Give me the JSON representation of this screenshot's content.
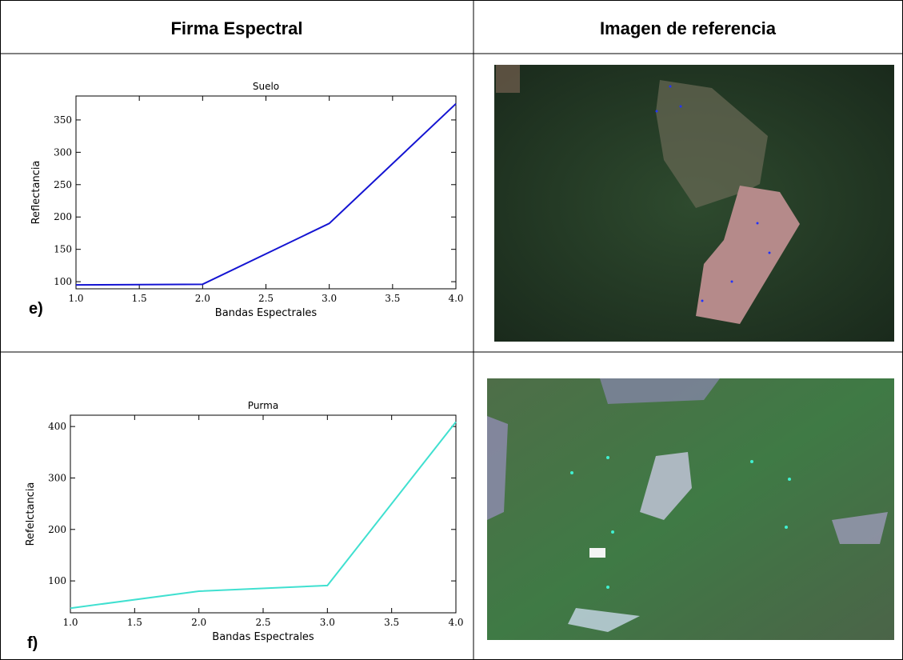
{
  "table": {
    "headers": [
      "Firma Espectral",
      "Imagen de referencia"
    ],
    "rows": [
      {
        "label": "e)",
        "chart": {
          "type": "line",
          "title": "Suelo",
          "x_label": "Bandas Espectrales",
          "y_label": "Reflectancia",
          "x": [
            1,
            2,
            3,
            4
          ],
          "values": [
            95,
            96,
            190,
            375
          ],
          "color": "#1414d2",
          "xlim": [
            1,
            4
          ],
          "ylim": [
            89,
            387
          ],
          "xticks": [
            {
              "value": 1,
              "label": "1.0"
            },
            {
              "value": 1.5,
              "label": "1.5"
            },
            {
              "value": 2,
              "label": "2.0"
            },
            {
              "value": 2.5,
              "label": "2.5"
            },
            {
              "value": 3,
              "label": "3.0"
            },
            {
              "value": 3.5,
              "label": "3.5"
            },
            {
              "value": 4,
              "label": "4.0"
            }
          ],
          "yticks": [
            100,
            150,
            200,
            250,
            300,
            350
          ]
        }
      },
      {
        "label": "f)",
        "chart": {
          "type": "line",
          "title": "Purma",
          "x_label": "Bandas Espectrales",
          "y_label": "Refelctancia",
          "x": [
            1,
            2,
            3,
            4
          ],
          "values": [
            47,
            80,
            91,
            409
          ],
          "color": "#40e0d0",
          "xlim": [
            1,
            4
          ],
          "ylim": [
            38,
            422
          ],
          "xticks": [
            {
              "value": 1,
              "label": "1.0"
            },
            {
              "value": 1.5,
              "label": "1.5"
            },
            {
              "value": 2,
              "label": "2.0"
            },
            {
              "value": 2.5,
              "label": "2.5"
            },
            {
              "value": 3,
              "label": "3.0"
            },
            {
              "value": 3.5,
              "label": "3.5"
            },
            {
              "value": 4,
              "label": "4.0"
            }
          ],
          "yticks": [
            100,
            200,
            300,
            400
          ]
        }
      }
    ]
  }
}
